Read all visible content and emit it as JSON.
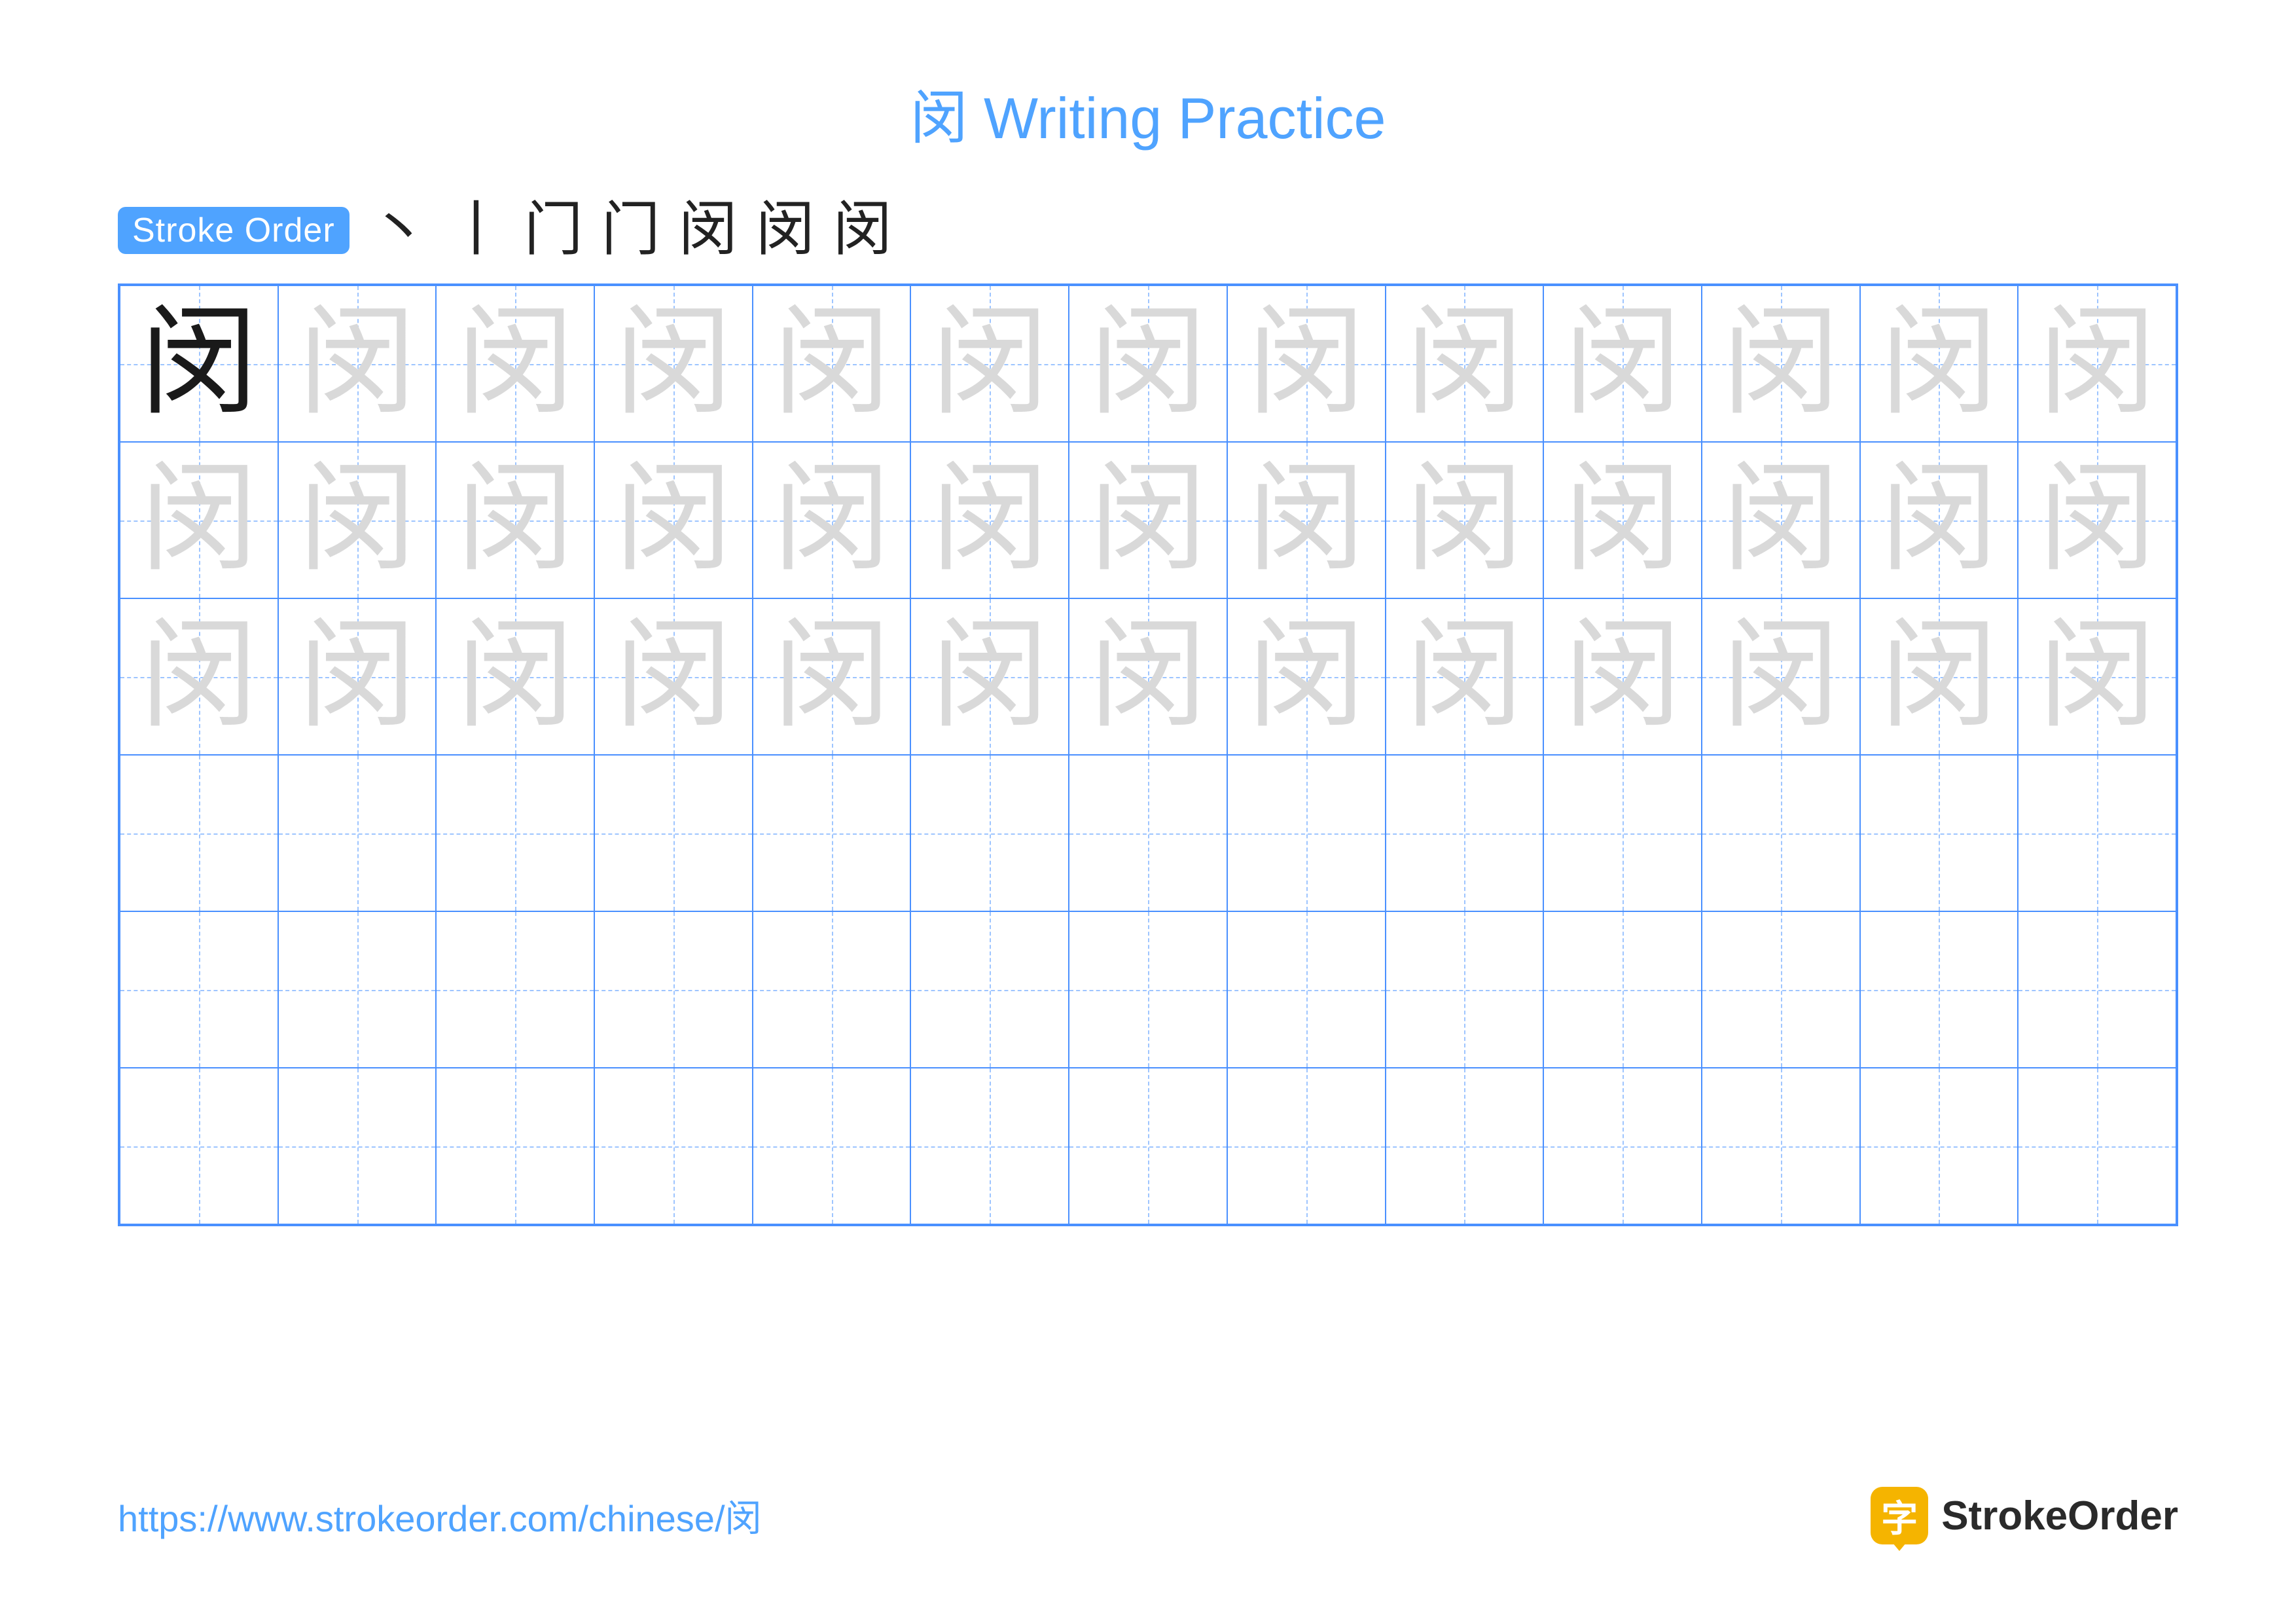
{
  "title_char": "闵",
  "title_suffix": " Writing Practice",
  "title_color": "#4fa3ff",
  "badge_label": "Stroke Order",
  "badge_bg": "#4fa3ff",
  "stroke_steps": [
    {
      "red": "丶",
      "black": ""
    },
    {
      "red": "丨",
      "black": "丶"
    },
    {
      "red": "𠃌",
      "black": "门"
    },
    {
      "red": "丶",
      "black": "门"
    },
    {
      "red": "丿",
      "black": "闷"
    },
    {
      "red": "乀",
      "black": "闵"
    },
    {
      "red": "",
      "black": "闵"
    }
  ],
  "stroke_colors": {
    "red": "#e8362d",
    "black": "#222222"
  },
  "grid": {
    "cols": 13,
    "rows": 6,
    "border_color": "#4a90ff",
    "guide_color": "#9ec5ff",
    "practice_char": "闵",
    "solid_color": "#1a1a1a",
    "trace_color": "#d9d9d9",
    "layout": [
      [
        "solid",
        "trace",
        "trace",
        "trace",
        "trace",
        "trace",
        "trace",
        "trace",
        "trace",
        "trace",
        "trace",
        "trace",
        "trace"
      ],
      [
        "trace",
        "trace",
        "trace",
        "trace",
        "trace",
        "trace",
        "trace",
        "trace",
        "trace",
        "trace",
        "trace",
        "trace",
        "trace"
      ],
      [
        "trace",
        "trace",
        "trace",
        "trace",
        "trace",
        "trace",
        "trace",
        "trace",
        "trace",
        "trace",
        "trace",
        "trace",
        "trace"
      ],
      [
        "empty",
        "empty",
        "empty",
        "empty",
        "empty",
        "empty",
        "empty",
        "empty",
        "empty",
        "empty",
        "empty",
        "empty",
        "empty"
      ],
      [
        "empty",
        "empty",
        "empty",
        "empty",
        "empty",
        "empty",
        "empty",
        "empty",
        "empty",
        "empty",
        "empty",
        "empty",
        "empty"
      ],
      [
        "empty",
        "empty",
        "empty",
        "empty",
        "empty",
        "empty",
        "empty",
        "empty",
        "empty",
        "empty",
        "empty",
        "empty",
        "empty"
      ]
    ]
  },
  "footer": {
    "url": "https://www.strokeorder.com/chinese/闵",
    "url_color": "#4fa3ff",
    "logo_bg": "#f5b400",
    "logo_char": "字",
    "logo_text": "StrokeOrder"
  }
}
